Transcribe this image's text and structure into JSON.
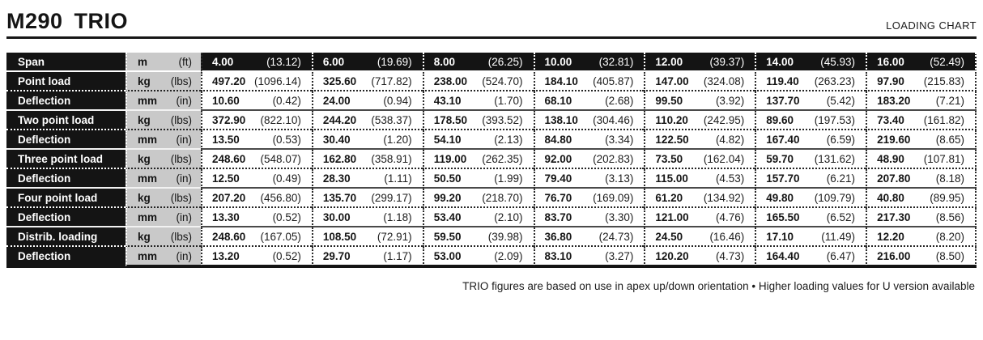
{
  "header": {
    "model": "M290",
    "series": "TRIO",
    "chart_label": "LOADING CHART"
  },
  "colors": {
    "row_header_bg": "#141414",
    "unit_cell_bg": "#c9c9c9",
    "text": "#151515",
    "dark_row_text": "#ffffff"
  },
  "table": {
    "rows": [
      {
        "label": "Span",
        "unit_metric": "m",
        "unit_imperial": "(ft)",
        "style": "dark",
        "values": [
          [
            "4.00",
            "(13.12)"
          ],
          [
            "6.00",
            "(19.69)"
          ],
          [
            "8.00",
            "(26.25)"
          ],
          [
            "10.00",
            "(32.81)"
          ],
          [
            "12.00",
            "(39.37)"
          ],
          [
            "14.00",
            "(45.93)"
          ],
          [
            "16.00",
            "(52.49)"
          ]
        ]
      },
      {
        "label": "Point load",
        "unit_metric": "kg",
        "unit_imperial": "(lbs)",
        "style": "load",
        "values": [
          [
            "497.20",
            "(1096.14)"
          ],
          [
            "325.60",
            "(717.82)"
          ],
          [
            "238.00",
            "(524.70)"
          ],
          [
            "184.10",
            "(405.87)"
          ],
          [
            "147.00",
            "(324.08)"
          ],
          [
            "119.40",
            "(263.23)"
          ],
          [
            "97.90",
            "(215.83)"
          ]
        ]
      },
      {
        "label": "Deflection",
        "unit_metric": "mm",
        "unit_imperial": "(in)",
        "style": "defl",
        "values": [
          [
            "10.60",
            "(0.42)"
          ],
          [
            "24.00",
            "(0.94)"
          ],
          [
            "43.10",
            "(1.70)"
          ],
          [
            "68.10",
            "(2.68)"
          ],
          [
            "99.50",
            "(3.92)"
          ],
          [
            "137.70",
            "(5.42)"
          ],
          [
            "183.20",
            "(7.21)"
          ]
        ]
      },
      {
        "label": "Two point load",
        "unit_metric": "kg",
        "unit_imperial": "(lbs)",
        "style": "load",
        "values": [
          [
            "372.90",
            "(822.10)"
          ],
          [
            "244.20",
            "(538.37)"
          ],
          [
            "178.50",
            "(393.52)"
          ],
          [
            "138.10",
            "(304.46)"
          ],
          [
            "110.20",
            "(242.95)"
          ],
          [
            "89.60",
            "(197.53)"
          ],
          [
            "73.40",
            "(161.82)"
          ]
        ]
      },
      {
        "label": "Deflection",
        "unit_metric": "mm",
        "unit_imperial": "(in)",
        "style": "defl",
        "values": [
          [
            "13.50",
            "(0.53)"
          ],
          [
            "30.40",
            "(1.20)"
          ],
          [
            "54.10",
            "(2.13)"
          ],
          [
            "84.80",
            "(3.34)"
          ],
          [
            "122.50",
            "(4.82)"
          ],
          [
            "167.40",
            "(6.59)"
          ],
          [
            "219.60",
            "(8.65)"
          ]
        ]
      },
      {
        "label": "Three point load",
        "unit_metric": "kg",
        "unit_imperial": "(lbs)",
        "style": "load",
        "values": [
          [
            "248.60",
            "(548.07)"
          ],
          [
            "162.80",
            "(358.91)"
          ],
          [
            "119.00",
            "(262.35)"
          ],
          [
            "92.00",
            "(202.83)"
          ],
          [
            "73.50",
            "(162.04)"
          ],
          [
            "59.70",
            "(131.62)"
          ],
          [
            "48.90",
            "(107.81)"
          ]
        ]
      },
      {
        "label": "Deflection",
        "unit_metric": "mm",
        "unit_imperial": "(in)",
        "style": "defl",
        "values": [
          [
            "12.50",
            "(0.49)"
          ],
          [
            "28.30",
            "(1.11)"
          ],
          [
            "50.50",
            "(1.99)"
          ],
          [
            "79.40",
            "(3.13)"
          ],
          [
            "115.00",
            "(4.53)"
          ],
          [
            "157.70",
            "(6.21)"
          ],
          [
            "207.80",
            "(8.18)"
          ]
        ]
      },
      {
        "label": "Four point load",
        "unit_metric": "kg",
        "unit_imperial": "(lbs)",
        "style": "load",
        "values": [
          [
            "207.20",
            "(456.80)"
          ],
          [
            "135.70",
            "(299.17)"
          ],
          [
            "99.20",
            "(218.70)"
          ],
          [
            "76.70",
            "(169.09)"
          ],
          [
            "61.20",
            "(134.92)"
          ],
          [
            "49.80",
            "(109.79)"
          ],
          [
            "40.80",
            "(89.95)"
          ]
        ]
      },
      {
        "label": "Deflection",
        "unit_metric": "mm",
        "unit_imperial": "(in)",
        "style": "defl",
        "values": [
          [
            "13.30",
            "(0.52)"
          ],
          [
            "30.00",
            "(1.18)"
          ],
          [
            "53.40",
            "(2.10)"
          ],
          [
            "83.70",
            "(3.30)"
          ],
          [
            "121.00",
            "(4.76)"
          ],
          [
            "165.50",
            "(6.52)"
          ],
          [
            "217.30",
            "(8.56)"
          ]
        ]
      },
      {
        "label": "Distrib. loading",
        "unit_metric": "kg",
        "unit_imperial": "(lbs)",
        "style": "load",
        "values": [
          [
            "248.60",
            "(167.05)"
          ],
          [
            "108.50",
            "(72.91)"
          ],
          [
            "59.50",
            "(39.98)"
          ],
          [
            "36.80",
            "(24.73)"
          ],
          [
            "24.50",
            "(16.46)"
          ],
          [
            "17.10",
            "(11.49)"
          ],
          [
            "12.20",
            "(8.20)"
          ]
        ]
      },
      {
        "label": "Deflection",
        "unit_metric": "mm",
        "unit_imperial": "(in)",
        "style": "defl",
        "values": [
          [
            "13.20",
            "(0.52)"
          ],
          [
            "29.70",
            "(1.17)"
          ],
          [
            "53.00",
            "(2.09)"
          ],
          [
            "83.10",
            "(3.27)"
          ],
          [
            "120.20",
            "(4.73)"
          ],
          [
            "164.40",
            "(6.47)"
          ],
          [
            "216.00",
            "(8.50)"
          ]
        ]
      }
    ]
  },
  "footer": {
    "note": "TRIO figures are based on use in apex up/down orientation • Higher loading values for U version available"
  }
}
